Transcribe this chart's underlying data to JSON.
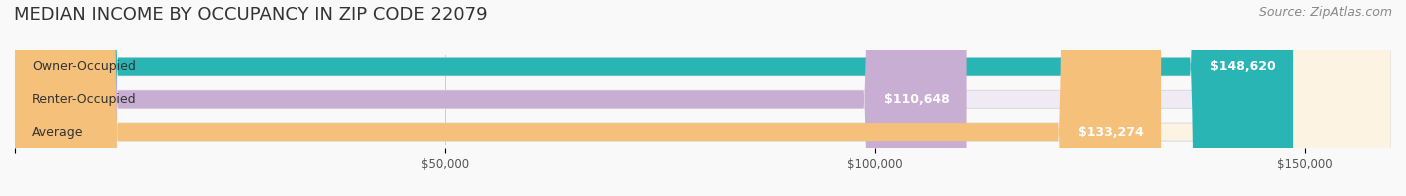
{
  "title": "MEDIAN INCOME BY OCCUPANCY IN ZIP CODE 22079",
  "source": "Source: ZipAtlas.com",
  "categories": [
    "Owner-Occupied",
    "Renter-Occupied",
    "Average"
  ],
  "values": [
    148620,
    110648,
    133274
  ],
  "labels": [
    "$148,620",
    "$110,648",
    "$133,274"
  ],
  "bar_colors": [
    "#2ab5b5",
    "#c9aed4",
    "#f5c07a"
  ],
  "bar_bg_colors": [
    "#e8f7f7",
    "#f0eaf5",
    "#fdf3e3"
  ],
  "xlim": [
    0,
    160000
  ],
  "xticks": [
    0,
    50000,
    100000,
    150000
  ],
  "xticklabels": [
    "",
    "$50,000",
    "$100,000",
    "$150,000"
  ],
  "title_fontsize": 13,
  "source_fontsize": 9,
  "label_fontsize": 9,
  "cat_fontsize": 9,
  "background_color": "#f9f9f9"
}
